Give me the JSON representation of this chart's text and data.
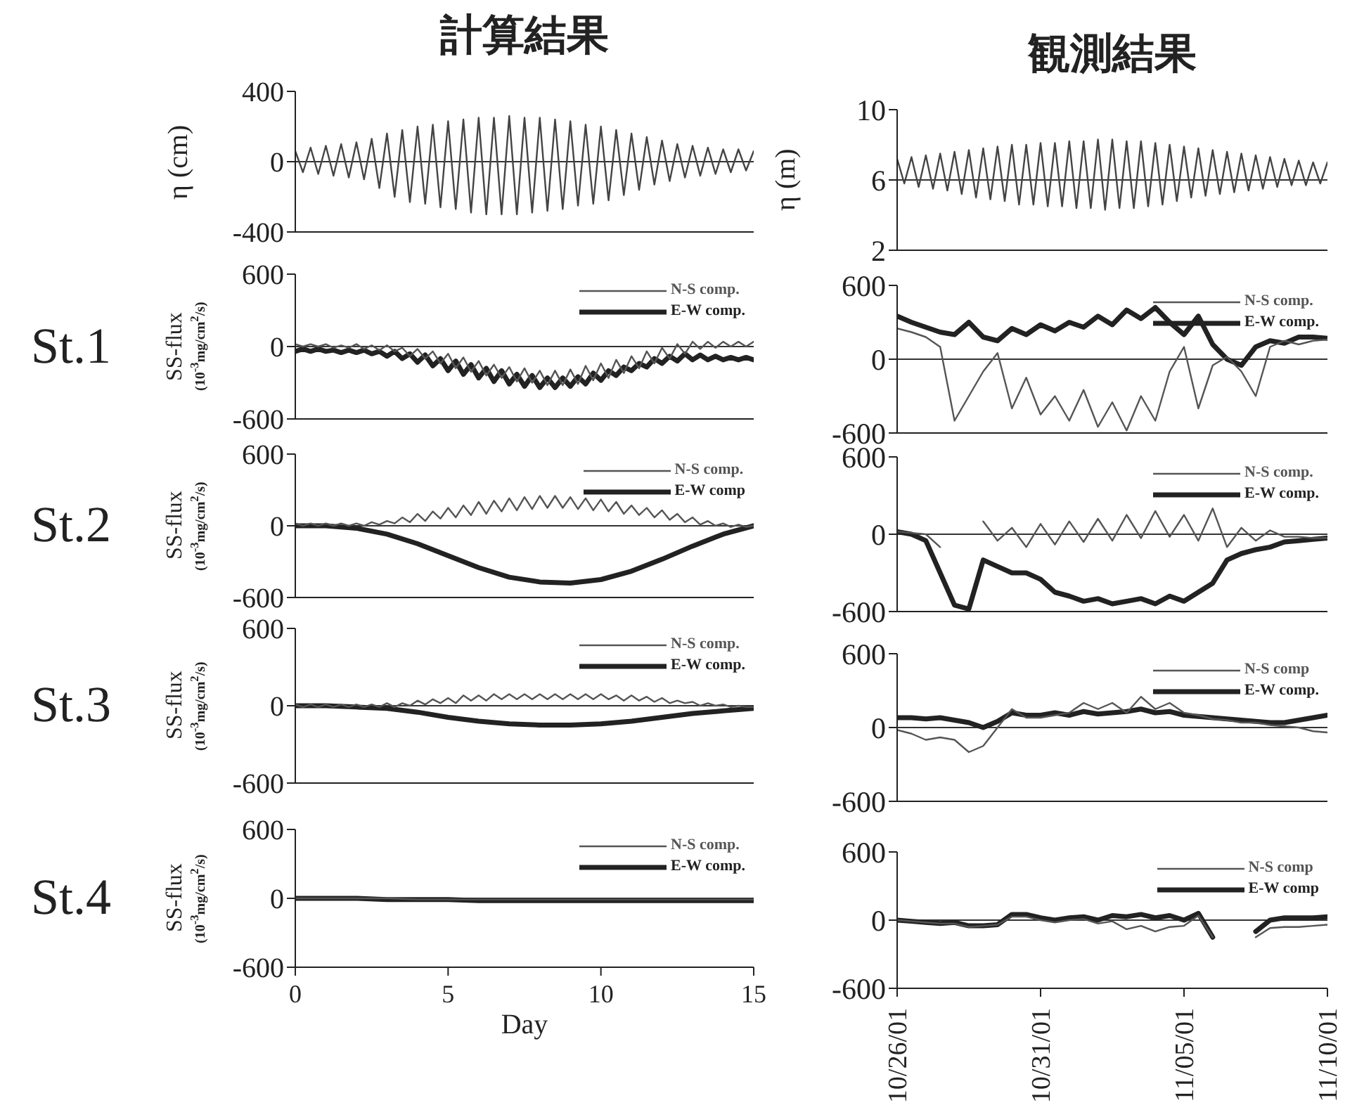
{
  "chart_data": [
    {
      "type": "line",
      "title": "計算結果",
      "ylabel": "η (cm)",
      "tick_labels": "y",
      "xlim": [
        0,
        15
      ],
      "xticks": [
        0,
        5,
        10,
        15
      ],
      "ylim": [
        -400,
        400
      ],
      "yticks": [
        -400,
        0,
        400
      ],
      "ref_lines": [
        {
          "axis": "y",
          "value": 0
        }
      ],
      "x": [
        0,
        0.25,
        0.5,
        0.75,
        1,
        1.25,
        1.5,
        1.75,
        2,
        2.25,
        2.5,
        2.75,
        3,
        3.25,
        3.5,
        3.75,
        4,
        4.25,
        4.5,
        4.75,
        5,
        5.25,
        5.5,
        5.75,
        6,
        6.25,
        6.5,
        6.75,
        7,
        7.25,
        7.5,
        7.75,
        8,
        8.25,
        8.5,
        8.75,
        9,
        9.25,
        9.5,
        9.75,
        10,
        10.25,
        10.5,
        10.75,
        11,
        11.25,
        11.5,
        11.75,
        12,
        12.25,
        12.5,
        12.75,
        13,
        13.25,
        13.5,
        13.75,
        14,
        14.25,
        14.5,
        14.75,
        15
      ],
      "series": [
        {
          "color": "#444444",
          "values": [
            60,
            -60,
            80,
            -70,
            90,
            -80,
            100,
            -90,
            110,
            -100,
            130,
            -150,
            160,
            -200,
            180,
            -230,
            200,
            -240,
            210,
            -260,
            230,
            -270,
            240,
            -290,
            250,
            -300,
            250,
            -300,
            260,
            -300,
            250,
            -290,
            250,
            -280,
            240,
            -270,
            230,
            -250,
            210,
            -240,
            200,
            -220,
            180,
            -190,
            160,
            -160,
            140,
            -130,
            120,
            -110,
            100,
            -90,
            90,
            -80,
            80,
            -70,
            70,
            -60,
            70,
            -50,
            60
          ]
        }
      ]
    },
    {
      "type": "line",
      "title": "観測結果",
      "ylabel": "η (m)",
      "tick_labels": "y",
      "xlim": [
        "--10-26",
        "--11-10"
      ],
      "xticks": [
        {
          "value": "--10-26",
          "label": "10/26/01"
        },
        {
          "value": "--10-31",
          "label": "10/31/01"
        },
        {
          "value": "--11-05",
          "label": "11/05/01"
        },
        {
          "value": "--11-10",
          "label": "11/10/01"
        }
      ],
      "ylim": [
        2,
        10
      ],
      "yticks": [
        2,
        6,
        10
      ],
      "ref_lines": [
        {
          "axis": "y",
          "value": 6
        }
      ],
      "x": [
        "--10-26T00:00",
        "--10-26T06:00",
        "--10-26T12:00",
        "--10-26T18:00",
        "--10-27T00:00",
        "--10-27T06:00",
        "--10-27T12:00",
        "--10-27T18:00",
        "--10-28T00:00",
        "--10-28T06:00",
        "--10-28T12:00",
        "--10-28T18:00",
        "--10-29T00:00",
        "--10-29T06:00",
        "--10-29T12:00",
        "--10-29T18:00",
        "--10-30T00:00",
        "--10-30T06:00",
        "--10-30T12:00",
        "--10-30T18:00",
        "--10-31T00:00",
        "--10-31T06:00",
        "--10-31T12:00",
        "--10-31T18:00",
        "--11-01T00:00",
        "--11-01T06:00",
        "--11-01T12:00",
        "--11-01T18:00",
        "--11-02T00:00",
        "--11-02T06:00",
        "--11-02T12:00",
        "--11-02T18:00",
        "--11-03T00:00",
        "--11-03T06:00",
        "--11-03T12:00",
        "--11-03T18:00",
        "--11-04T00:00",
        "--11-04T06:00",
        "--11-04T12:00",
        "--11-04T18:00",
        "--11-05T00:00",
        "--11-05T06:00",
        "--11-05T12:00",
        "--11-05T18:00",
        "--11-06T00:00",
        "--11-06T06:00",
        "--11-06T12:00",
        "--11-06T18:00",
        "--11-07T00:00",
        "--11-07T06:00",
        "--11-07T12:00",
        "--11-07T18:00",
        "--11-08T00:00",
        "--11-08T06:00",
        "--11-08T12:00",
        "--11-08T18:00",
        "--11-09T00:00",
        "--11-09T06:00",
        "--11-09T12:00",
        "--11-09T18:00",
        "--11-10T00:00"
      ],
      "series": [
        {
          "color": "#444444",
          "values": [
            7.2,
            5.8,
            7.3,
            5.6,
            7.4,
            5.5,
            7.5,
            5.4,
            7.6,
            5.2,
            7.7,
            5.0,
            7.8,
            4.9,
            7.9,
            4.8,
            8.0,
            4.6,
            8.0,
            4.6,
            8.1,
            4.5,
            8.1,
            4.5,
            8.2,
            4.4,
            8.2,
            4.4,
            8.3,
            4.3,
            8.3,
            4.4,
            8.2,
            4.4,
            8.2,
            4.5,
            8.1,
            4.6,
            8.0,
            4.8,
            7.9,
            5.0,
            7.8,
            5.1,
            7.7,
            5.2,
            7.6,
            5.3,
            7.5,
            5.4,
            7.4,
            5.5,
            7.3,
            5.6,
            7.2,
            5.7,
            7.1,
            5.7,
            7.0,
            5.8,
            7.0
          ]
        }
      ]
    },
    {
      "type": "line",
      "ylabel": "SS-flux\n(10$^{-3}$mg/cm$^{2}$/s)",
      "annotations": [
        "St.1"
      ],
      "legend": "top right",
      "tick_labels": "y",
      "xlim": [
        0,
        15
      ],
      "xticks": [
        0,
        5,
        10,
        15
      ],
      "ylim": [
        -600,
        600
      ],
      "yticks": [
        -600,
        0,
        600
      ],
      "ref_lines": [
        {
          "axis": "y",
          "value": 0
        }
      ],
      "x": [
        0,
        0.25,
        0.5,
        0.75,
        1,
        1.25,
        1.5,
        1.75,
        2,
        2.25,
        2.5,
        2.75,
        3,
        3.25,
        3.5,
        3.75,
        4,
        4.25,
        4.5,
        4.75,
        5,
        5.25,
        5.5,
        5.75,
        6,
        6.25,
        6.5,
        6.75,
        7,
        7.25,
        7.5,
        7.75,
        8,
        8.25,
        8.5,
        8.75,
        9,
        9.25,
        9.5,
        9.75,
        10,
        10.25,
        10.5,
        10.75,
        11,
        11.25,
        11.5,
        11.75,
        12,
        12.25,
        12.5,
        12.75,
        13,
        13.25,
        13.5,
        13.75,
        14,
        14.25,
        14.5,
        14.75,
        15
      ],
      "series": [
        {
          "name": "N-S comp.",
          "color": "#555555",
          "values": [
            20,
            0,
            20,
            0,
            20,
            -10,
            10,
            -10,
            20,
            -20,
            10,
            -30,
            10,
            -40,
            -10,
            -80,
            -20,
            -100,
            -40,
            -140,
            -60,
            -180,
            -90,
            -210,
            -120,
            -240,
            -150,
            -260,
            -170,
            -290,
            -180,
            -300,
            -200,
            -320,
            -200,
            -320,
            -190,
            -310,
            -160,
            -280,
            -140,
            -260,
            -110,
            -220,
            -80,
            -180,
            -40,
            -140,
            -10,
            -100,
            20,
            -60,
            40,
            -20,
            40,
            -10,
            40,
            0,
            40,
            0,
            40
          ]
        },
        {
          "name": "E-W comp.",
          "color": "#222222",
          "values": [
            -40,
            -20,
            -40,
            -20,
            -40,
            -30,
            -50,
            -30,
            -50,
            -30,
            -60,
            -40,
            -80,
            -40,
            -100,
            -60,
            -130,
            -70,
            -160,
            -100,
            -200,
            -120,
            -230,
            -150,
            -260,
            -180,
            -290,
            -200,
            -310,
            -230,
            -330,
            -240,
            -340,
            -260,
            -340,
            -260,
            -330,
            -250,
            -310,
            -220,
            -280,
            -200,
            -240,
            -170,
            -200,
            -140,
            -170,
            -100,
            -140,
            -80,
            -120,
            -60,
            -110,
            -70,
            -110,
            -80,
            -110,
            -90,
            -110,
            -90,
            -110
          ]
        }
      ]
    },
    {
      "type": "line",
      "legend": "top right",
      "tick_labels": "y",
      "xlim": [
        "--10-26",
        "--11-10"
      ],
      "xticks": [
        {
          "value": "--10-26",
          "label": "10/26/01"
        },
        {
          "value": "--10-31",
          "label": "10/31/01"
        },
        {
          "value": "--11-05",
          "label": "11/05/01"
        },
        {
          "value": "--11-10",
          "label": "11/10/01"
        }
      ],
      "ylim": [
        -600,
        600
      ],
      "yticks": [
        -600,
        0,
        600
      ],
      "ref_lines": [
        {
          "axis": "y",
          "value": 0
        }
      ],
      "x": [
        "--10-26T00:00",
        "--10-26T12:00",
        "--10-27T00:00",
        "--10-27T12:00",
        "--10-28T00:00",
        "--10-28T12:00",
        "--10-29T00:00",
        "--10-29T12:00",
        "--10-30T00:00",
        "--10-30T12:00",
        "--10-31T00:00",
        "--10-31T12:00",
        "--11-01T00:00",
        "--11-01T12:00",
        "--11-02T00:00",
        "--11-02T12:00",
        "--11-03T00:00",
        "--11-03T12:00",
        "--11-04T00:00",
        "--11-04T12:00",
        "--11-05T00:00",
        "--11-05T12:00",
        "--11-06T00:00",
        "--11-06T12:00",
        "--11-07T00:00",
        "--11-07T12:00",
        "--11-08T00:00",
        "--11-08T12:00",
        "--11-09T00:00",
        "--11-09T12:00",
        "--11-10T00:00"
      ],
      "series": [
        {
          "name": "N-S comp.",
          "color": "#555555",
          "values": [
            250,
            220,
            180,
            100,
            -500,
            -300,
            -100,
            50,
            -400,
            -150,
            -450,
            -300,
            -500,
            -250,
            -550,
            -350,
            -580,
            -300,
            -500,
            -100,
            100,
            -400,
            -50,
            20,
            -100,
            -300,
            100,
            150,
            120,
            150,
            160
          ]
        },
        {
          "name": "E-W comp.",
          "color": "#222222",
          "values": [
            350,
            300,
            260,
            220,
            200,
            300,
            180,
            150,
            250,
            200,
            280,
            230,
            300,
            260,
            350,
            280,
            400,
            330,
            420,
            300,
            200,
            350,
            120,
            0,
            -50,
            100,
            150,
            130,
            180,
            180,
            170
          ]
        }
      ]
    },
    {
      "type": "line",
      "ylabel": "SS-flux\n(10$^{-3}$mg/cm$^{2}$/s)",
      "annotations": [
        "St.2"
      ],
      "legend": "top right",
      "tick_labels": "y",
      "xlim": [
        0,
        15
      ],
      "xticks": [
        0,
        5,
        10,
        15
      ],
      "ylim": [
        -600,
        600
      ],
      "yticks": [
        -600,
        0,
        600
      ],
      "ref_lines": [
        {
          "axis": "y",
          "value": 0
        }
      ],
      "x": [
        0,
        0.25,
        0.5,
        0.75,
        1,
        1.25,
        1.5,
        1.75,
        2,
        2.25,
        2.5,
        2.75,
        3,
        3.25,
        3.5,
        3.75,
        4,
        4.25,
        4.5,
        4.75,
        5,
        5.25,
        5.5,
        5.75,
        6,
        6.25,
        6.5,
        6.75,
        7,
        7.25,
        7.5,
        7.75,
        8,
        8.25,
        8.5,
        8.75,
        9,
        9.25,
        9.5,
        9.75,
        10,
        10.25,
        10.5,
        10.75,
        11,
        11.25,
        11.5,
        11.75,
        12,
        12.25,
        12.5,
        12.75,
        13,
        13.25,
        13.5,
        13.75,
        14,
        14.25,
        14.5,
        14.75,
        15
      ],
      "series": [
        {
          "name": "N-S comp.",
          "color": "#555555",
          "values": [
            20,
            0,
            20,
            0,
            20,
            0,
            20,
            0,
            20,
            0,
            30,
            10,
            40,
            20,
            70,
            30,
            100,
            40,
            120,
            60,
            150,
            70,
            170,
            90,
            200,
            100,
            210,
            120,
            230,
            130,
            240,
            140,
            250,
            150,
            250,
            150,
            240,
            140,
            230,
            130,
            220,
            120,
            200,
            100,
            170,
            90,
            150,
            70,
            130,
            50,
            100,
            30,
            70,
            10,
            40,
            0,
            20,
            -10,
            10,
            -10,
            0
          ]
        },
        {
          "name": "E-W comp",
          "color": "#222222",
          "x": [
            0,
            1,
            2,
            3,
            4,
            5,
            6,
            7,
            8,
            9,
            10,
            11,
            12,
            13,
            14,
            15
          ],
          "values": [
            0,
            0,
            -20,
            -70,
            -150,
            -250,
            -350,
            -430,
            -470,
            -480,
            -450,
            -380,
            -280,
            -170,
            -70,
            0
          ]
        }
      ]
    },
    {
      "type": "line",
      "legend": "top right",
      "tick_labels": "y",
      "xlim": [
        "--10-26",
        "--11-10"
      ],
      "xticks": [
        {
          "value": "--10-26",
          "label": "10/26/01"
        },
        {
          "value": "--10-31",
          "label": "10/31/01"
        },
        {
          "value": "--11-05",
          "label": "11/05/01"
        },
        {
          "value": "--11-10",
          "label": "11/10/01"
        }
      ],
      "ylim": [
        -600,
        600
      ],
      "yticks": [
        -600,
        0,
        600
      ],
      "ref_lines": [
        {
          "axis": "y",
          "value": 0
        }
      ],
      "x": [
        "--10-26T00:00",
        "--10-26T12:00",
        "--10-27T00:00",
        "--10-27T12:00",
        "--10-28T00:00",
        "--10-28T12:00",
        "--10-29T00:00",
        "--10-29T12:00",
        "--10-30T00:00",
        "--10-30T12:00",
        "--10-31T00:00",
        "--10-31T12:00",
        "--11-01T00:00",
        "--11-01T12:00",
        "--11-02T00:00",
        "--11-02T12:00",
        "--11-03T00:00",
        "--11-03T12:00",
        "--11-04T00:00",
        "--11-04T12:00",
        "--11-05T00:00",
        "--11-05T12:00",
        "--11-06T00:00",
        "--11-06T12:00",
        "--11-07T00:00",
        "--11-07T12:00",
        "--11-08T00:00",
        "--11-08T12:00",
        "--11-09T00:00",
        "--11-09T12:00",
        "--11-10T00:00"
      ],
      "series": [
        {
          "name": "N-S comp.",
          "color": "#555555",
          "values": [
            20,
            10,
            0,
            -100,
            null,
            null,
            100,
            -50,
            50,
            -100,
            80,
            -80,
            100,
            -60,
            120,
            -50,
            150,
            -30,
            180,
            -20,
            150,
            -50,
            200,
            -100,
            50,
            -50,
            30,
            -20,
            -20,
            -30,
            -30
          ]
        },
        {
          "name": "E-W comp.",
          "color": "#222222",
          "values": [
            20,
            0,
            -50,
            -300,
            -550,
            -580,
            -200,
            -250,
            -300,
            -300,
            -350,
            -450,
            -480,
            -520,
            -500,
            -540,
            -520,
            -500,
            -540,
            -480,
            -520,
            -450,
            -380,
            -200,
            -150,
            -120,
            -100,
            -60,
            -50,
            -40,
            -30
          ]
        }
      ]
    },
    {
      "type": "line",
      "ylabel": "SS-flux\n(10$^{-3}$mg/cm$^{2}$/s)",
      "annotations": [
        "St.3"
      ],
      "legend": "top right",
      "tick_labels": "y",
      "xlim": [
        0,
        15
      ],
      "xticks": [
        0,
        5,
        10,
        15
      ],
      "ylim": [
        -600,
        600
      ],
      "yticks": [
        -600,
        0,
        600
      ],
      "ref_lines": [
        {
          "axis": "y",
          "value": 0
        }
      ],
      "x": [
        0,
        0.25,
        0.5,
        0.75,
        1,
        1.25,
        1.5,
        1.75,
        2,
        2.25,
        2.5,
        2.75,
        3,
        3.25,
        3.5,
        3.75,
        4,
        4.25,
        4.5,
        4.75,
        5,
        5.25,
        5.5,
        5.75,
        6,
        6.25,
        6.5,
        6.75,
        7,
        7.25,
        7.5,
        7.75,
        8,
        8.25,
        8.5,
        8.75,
        9,
        9.25,
        9.5,
        9.75,
        10,
        10.25,
        10.5,
        10.75,
        11,
        11.25,
        11.5,
        11.75,
        12,
        12.25,
        12.5,
        12.75,
        13,
        13.25,
        13.5,
        13.75,
        14,
        14.25,
        14.5,
        14.75,
        15
      ],
      "series": [
        {
          "name": "N-S comp.",
          "color": "#555555",
          "values": [
            10,
            -10,
            10,
            -10,
            10,
            -10,
            10,
            -10,
            10,
            -10,
            10,
            -10,
            20,
            -10,
            20,
            0,
            40,
            10,
            50,
            20,
            60,
            20,
            80,
            40,
            80,
            40,
            90,
            50,
            90,
            50,
            90,
            50,
            90,
            50,
            90,
            50,
            90,
            50,
            90,
            50,
            90,
            50,
            80,
            40,
            80,
            40,
            70,
            30,
            60,
            20,
            40,
            20,
            30,
            0,
            20,
            0,
            10,
            -10,
            0,
            -10,
            -10
          ]
        },
        {
          "name": "E-W comp.",
          "color": "#222222",
          "x": [
            0,
            1,
            2,
            3,
            4,
            5,
            6,
            7,
            8,
            9,
            10,
            11,
            12,
            13,
            14,
            15
          ],
          "values": [
            0,
            0,
            -10,
            -20,
            -50,
            -90,
            -120,
            -140,
            -150,
            -150,
            -140,
            -120,
            -90,
            -60,
            -40,
            -20
          ]
        }
      ]
    },
    {
      "type": "line",
      "legend": "top right",
      "tick_labels": "y",
      "xlim": [
        "--10-26",
        "--11-10"
      ],
      "xticks": [
        {
          "value": "--10-26",
          "label": "10/26/01"
        },
        {
          "value": "--10-31",
          "label": "10/31/01"
        },
        {
          "value": "--11-05",
          "label": "11/05/01"
        },
        {
          "value": "--11-10",
          "label": "11/10/01"
        }
      ],
      "ylim": [
        -600,
        600
      ],
      "yticks": [
        -600,
        0,
        600
      ],
      "ref_lines": [
        {
          "axis": "y",
          "value": 0
        }
      ],
      "x": [
        "--10-26T00:00",
        "--10-26T12:00",
        "--10-27T00:00",
        "--10-27T12:00",
        "--10-28T00:00",
        "--10-28T12:00",
        "--10-29T00:00",
        "--10-29T12:00",
        "--10-30T00:00",
        "--10-30T12:00",
        "--10-31T00:00",
        "--10-31T12:00",
        "--11-01T00:00",
        "--11-01T12:00",
        "--11-02T00:00",
        "--11-02T12:00",
        "--11-03T00:00",
        "--11-03T12:00",
        "--11-04T00:00",
        "--11-04T12:00",
        "--11-05T00:00",
        "--11-05T12:00",
        "--11-06T00:00",
        "--11-06T12:00",
        "--11-07T00:00",
        "--11-07T12:00",
        "--11-08T00:00",
        "--11-08T12:00",
        "--11-09T00:00",
        "--11-09T12:00",
        "--11-10T00:00"
      ],
      "series": [
        {
          "name": "N-S comp",
          "color": "#555555",
          "values": [
            -20,
            -50,
            -100,
            -80,
            -100,
            -200,
            -150,
            0,
            150,
            80,
            80,
            100,
            120,
            200,
            150,
            200,
            120,
            250,
            150,
            200,
            120,
            100,
            70,
            60,
            40,
            40,
            20,
            10,
            0,
            -30,
            -40
          ]
        },
        {
          "name": "E-W comp.",
          "color": "#222222",
          "values": [
            80,
            80,
            70,
            80,
            60,
            40,
            0,
            50,
            120,
            100,
            100,
            120,
            100,
            130,
            110,
            120,
            130,
            150,
            120,
            130,
            100,
            90,
            80,
            70,
            60,
            50,
            40,
            40,
            60,
            80,
            100
          ]
        }
      ]
    },
    {
      "type": "line",
      "ylabel": "SS-flux\n(10$^{-3}$mg/cm$^{2}$/s)",
      "annotations": [
        "St.4"
      ],
      "xlabel": "Day",
      "legend": "top right",
      "xlim": [
        0,
        15
      ],
      "xticks": [
        0,
        5,
        10,
        15
      ],
      "ylim": [
        -600,
        600
      ],
      "yticks": [
        -600,
        0,
        600
      ],
      "ref_lines": [
        {
          "axis": "y",
          "value": 0
        }
      ],
      "series": [
        {
          "name": "N-S comp.",
          "color": "#555555",
          "x": [
            0,
            1,
            2,
            3,
            4,
            5,
            6,
            7,
            8,
            9,
            10,
            11,
            12,
            13,
            14,
            15
          ],
          "values": [
            0,
            0,
            0,
            0,
            -10,
            -10,
            -10,
            -10,
            -10,
            -10,
            -10,
            -10,
            -10,
            -10,
            -10,
            -10
          ]
        },
        {
          "name": "E-W comp.",
          "color": "#222222",
          "x": [
            0,
            1,
            2,
            3,
            4,
            5,
            6,
            7,
            8,
            9,
            10,
            11,
            12,
            13,
            14,
            15
          ],
          "values": [
            0,
            0,
            0,
            -10,
            -10,
            -10,
            -20,
            -20,
            -20,
            -20,
            -20,
            -20,
            -20,
            -20,
            -20,
            -20
          ]
        }
      ]
    },
    {
      "type": "line",
      "legend": "top right",
      "xlim": [
        "--10-26",
        "--11-10"
      ],
      "xticks": [
        {
          "value": "--10-26",
          "label": "10/26/01"
        },
        {
          "value": "--10-31",
          "label": "10/31/01"
        },
        {
          "value": "--11-05",
          "label": "11/05/01"
        },
        {
          "value": "--11-10",
          "label": "11/10/01"
        }
      ],
      "ylim": [
        -600,
        600
      ],
      "yticks": [
        -600,
        0,
        600
      ],
      "ref_lines": [
        {
          "axis": "y",
          "value": 0
        }
      ],
      "x": [
        "--10-26T00:00",
        "--10-26T12:00",
        "--10-27T00:00",
        "--10-27T12:00",
        "--10-28T00:00",
        "--10-28T12:00",
        "--10-29T00:00",
        "--10-29T12:00",
        "--10-30T00:00",
        "--10-30T12:00",
        "--10-31T00:00",
        "--10-31T12:00",
        "--11-01T00:00",
        "--11-01T12:00",
        "--11-02T00:00",
        "--11-02T12:00",
        "--11-03T00:00",
        "--11-03T12:00",
        "--11-04T00:00",
        "--11-04T12:00",
        "--11-05T00:00",
        "--11-05T12:00",
        "--11-06T00:00",
        "--11-06T12:00",
        "--11-07T00:00",
        "--11-07T12:00",
        "--11-08T00:00",
        "--11-08T12:00",
        "--11-09T00:00",
        "--11-09T12:00",
        "--11-10T00:00"
      ],
      "series": [
        {
          "name": "N-S comp",
          "color": "#555555",
          "values": [
            0,
            -10,
            -20,
            -30,
            -30,
            -60,
            -50,
            -40,
            30,
            30,
            0,
            -20,
            0,
            10,
            -30,
            -10,
            -80,
            -50,
            -100,
            -60,
            -50,
            40,
            -150,
            null,
            null,
            -150,
            -70,
            -60,
            -60,
            -50,
            -40
          ]
        },
        {
          "name": "E-W comp",
          "color": "#222222",
          "values": [
            0,
            -10,
            -20,
            -30,
            -20,
            -50,
            -50,
            -40,
            50,
            50,
            20,
            0,
            20,
            30,
            0,
            40,
            30,
            50,
            20,
            40,
            0,
            60,
            -150,
            null,
            null,
            -100,
            0,
            20,
            20,
            20,
            30
          ]
        }
      ]
    }
  ]
}
